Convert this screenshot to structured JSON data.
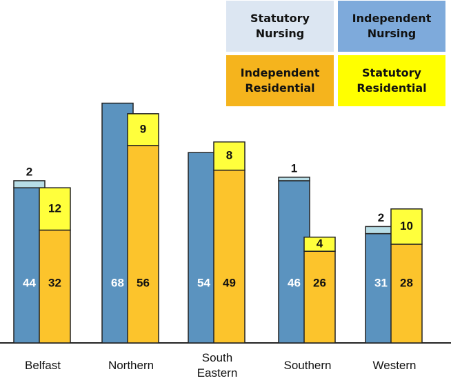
{
  "chart_data": {
    "type": "grouped-stacked-bar",
    "categories": [
      "Belfast",
      "Northern",
      "South Eastern",
      "Southern",
      "Western"
    ],
    "groups": [
      {
        "series": [
          {
            "name": "Independent Nursing",
            "color": "#5b93bf",
            "legend_color": "#7eaadb",
            "values": [
              44,
              68,
              54,
              46,
              31
            ]
          },
          {
            "name": "Statutory Nursing",
            "color": "#b7dde6",
            "legend_color": "#dce6f2",
            "values": [
              2,
              null,
              null,
              1,
              2
            ]
          }
        ]
      },
      {
        "series": [
          {
            "name": "Independent Residential",
            "color": "#fcc42c",
            "legend_color": "#f5b41d",
            "values": [
              32,
              56,
              49,
              26,
              28
            ]
          },
          {
            "name": "Statutory Residential",
            "color": "#ffff3c",
            "legend_color": "#ffff00",
            "values": [
              12,
              9,
              8,
              4,
              10
            ]
          }
        ]
      }
    ]
  }
}
